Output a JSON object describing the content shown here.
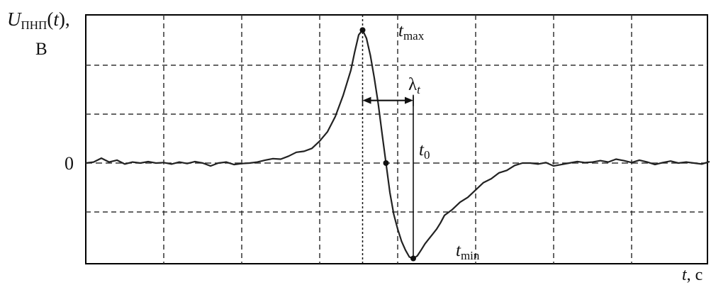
{
  "chart_data": {
    "type": "line",
    "title": "",
    "ylabel": {
      "var": "U",
      "sub": "ПНП",
      "open": "(",
      "arg": "t",
      "close": "),",
      "unit": "В"
    },
    "xlabel": {
      "var": "t",
      "unit": ", с"
    },
    "y_tick_labels": [
      "0"
    ],
    "xlim": [
      0,
      8
    ],
    "ylim": [
      -2.05,
      2.65
    ],
    "grid": true,
    "grid_x": [
      1,
      2,
      3,
      4,
      5,
      6,
      7
    ],
    "grid_y": [
      -1,
      1,
      2
    ],
    "series": [
      {
        "name": "",
        "x": [
          0,
          0.1,
          0.2,
          0.3,
          0.4,
          0.5,
          0.6,
          0.7,
          0.8,
          0.9,
          1.0,
          1.1,
          1.2,
          1.3,
          1.4,
          1.5,
          1.6,
          1.7,
          1.8,
          1.9,
          2.0,
          2.1,
          2.2,
          2.3,
          2.4,
          2.5,
          2.6,
          2.7,
          2.8,
          2.9,
          3.0,
          3.1,
          3.2,
          3.3,
          3.4,
          3.45,
          3.5,
          3.55,
          3.6,
          3.65,
          3.7,
          3.75,
          3.8,
          3.85,
          3.9,
          3.95,
          4.0,
          4.05,
          4.1,
          4.15,
          4.2,
          4.25,
          4.3,
          4.35,
          4.4,
          4.45,
          4.5,
          4.55,
          4.6,
          4.7,
          4.8,
          4.9,
          5.0,
          5.1,
          5.2,
          5.3,
          5.4,
          5.5,
          5.6,
          5.7,
          5.8,
          5.9,
          6.0,
          6.1,
          6.2,
          6.3,
          6.4,
          6.5,
          6.6,
          6.7,
          6.8,
          6.9,
          7.0,
          7.1,
          7.2,
          7.3,
          7.4,
          7.5,
          7.6,
          7.7,
          7.8,
          7.9,
          8.0
        ],
        "y": [
          0.0,
          0.02,
          0.1,
          0.02,
          0.06,
          -0.02,
          0.02,
          0.0,
          0.03,
          0.0,
          0.01,
          -0.02,
          0.02,
          -0.01,
          0.03,
          0.0,
          -0.06,
          0.0,
          0.02,
          -0.03,
          -0.01,
          0.0,
          0.02,
          0.06,
          0.09,
          0.08,
          0.14,
          0.22,
          0.24,
          0.3,
          0.45,
          0.64,
          0.95,
          1.38,
          1.9,
          2.28,
          2.62,
          2.72,
          2.55,
          2.2,
          1.74,
          1.22,
          0.6,
          0.0,
          -0.6,
          -1.05,
          -1.35,
          -1.6,
          -1.78,
          -1.92,
          -1.95,
          -1.9,
          -1.78,
          -1.65,
          -1.55,
          -1.45,
          -1.35,
          -1.22,
          -1.07,
          -0.95,
          -0.8,
          -0.7,
          -0.55,
          -0.4,
          -0.32,
          -0.2,
          -0.15,
          -0.05,
          0.0,
          0.0,
          -0.02,
          0.01,
          -0.06,
          -0.03,
          0.0,
          0.03,
          0.01,
          0.02,
          0.05,
          0.02,
          0.08,
          0.05,
          0.01,
          0.06,
          0.02,
          -0.03,
          0.01,
          0.04,
          0.0,
          0.02,
          0.0,
          -0.02,
          0.03
        ]
      }
    ],
    "annotations": [
      {
        "id": "tmax",
        "var": "t",
        "sub": "max",
        "x": 3.55,
        "y": 2.72
      },
      {
        "id": "t0",
        "var": "t",
        "sub": "0",
        "x": 3.85,
        "y": 0.0
      },
      {
        "id": "tmin",
        "var": "t",
        "sub": "min",
        "x": 4.2,
        "y": -1.95
      }
    ],
    "interval": {
      "label": "λ",
      "sub": "t",
      "x_start": 3.55,
      "x_end": 4.2,
      "y": 1.28
    },
    "colors": {
      "line": "#222222",
      "grid": "#333333",
      "frame": "#000000"
    }
  }
}
